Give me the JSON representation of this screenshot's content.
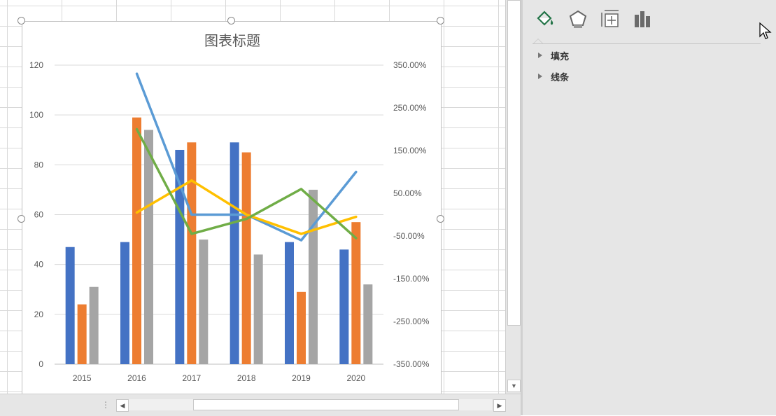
{
  "sheet": {},
  "chart_data": {
    "type": "bar",
    "title": "图表标题",
    "categories": [
      "2015",
      "2016",
      "2017",
      "2018",
      "2019",
      "2020"
    ],
    "series": [
      {
        "values": [
          47,
          49,
          86,
          89,
          49,
          46
        ],
        "color": "#4472c4",
        "axis": "primary"
      },
      {
        "values": [
          24,
          99,
          89,
          85,
          29,
          57
        ],
        "color": "#ed7d31",
        "axis": "primary"
      },
      {
        "values": [
          31,
          94,
          50,
          44,
          70,
          32
        ],
        "color": "#a5a5a5",
        "axis": "primary"
      }
    ],
    "lines": [
      {
        "values": [
          3.3,
          0.0,
          0.0,
          -0.6,
          1.0
        ],
        "start": 1,
        "color": "#5b9bd5",
        "axis": "secondary"
      },
      {
        "values": [
          0.05,
          0.8,
          0.0,
          -0.45,
          -0.05
        ],
        "start": 1,
        "color": "#ffc000",
        "axis": "secondary"
      },
      {
        "values": [
          2.0,
          -0.45,
          -0.1,
          0.6,
          -0.55
        ],
        "start": 1,
        "color": "#70ad47",
        "axis": "secondary"
      }
    ],
    "y_ticks": [
      "0",
      "20",
      "40",
      "60",
      "80",
      "100",
      "120"
    ],
    "ylim": [
      0,
      120
    ],
    "y2_ticks": [
      "-350.00%",
      "-250.00%",
      "-150.00%",
      "-50.00%",
      "50.00%",
      "150.00%",
      "250.00%",
      "350.00%"
    ],
    "y2lim": [
      -3.5,
      3.5
    ],
    "grid": true,
    "legend": "none"
  },
  "pane": {
    "tabs": [
      {
        "icon": "fill-and-line-icon",
        "color": "#217346"
      },
      {
        "icon": "effects-icon",
        "color": "#555555"
      },
      {
        "icon": "size-properties-icon",
        "color": "#555555"
      },
      {
        "icon": "series-options-icon",
        "color": "#555555"
      }
    ],
    "sections": [
      {
        "label": "填充"
      },
      {
        "label": "线条"
      }
    ]
  },
  "scrollbars": {
    "down_arrow": "▼",
    "left_arrow": "◀",
    "right_arrow": "▶",
    "grip": "⋮"
  }
}
